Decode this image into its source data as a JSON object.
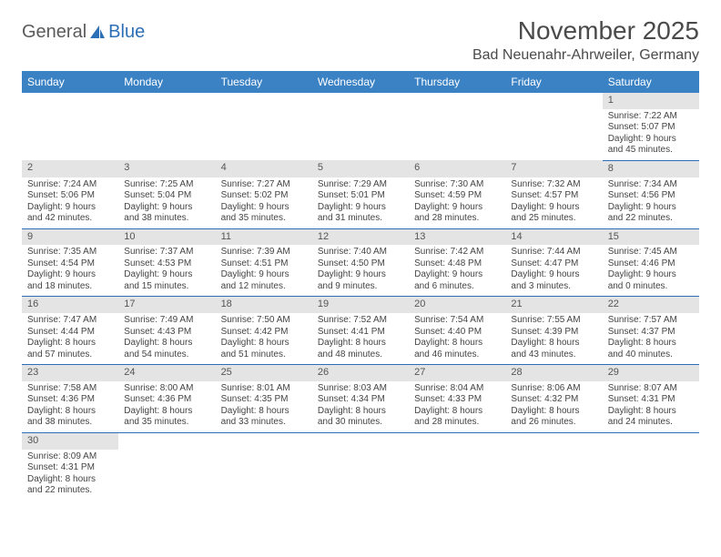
{
  "logo": {
    "general": "General",
    "blue": "Blue"
  },
  "title": "November 2025",
  "location": "Bad Neuenahr-Ahrweiler, Germany",
  "colors": {
    "header_bg": "#3b82c4",
    "header_text": "#ffffff",
    "daynum_bg": "#e4e4e4",
    "rule": "#2d6fb6",
    "logo_blue": "#2d6fb6",
    "logo_gray": "#5a5a5a"
  },
  "day_headers": [
    "Sunday",
    "Monday",
    "Tuesday",
    "Wednesday",
    "Thursday",
    "Friday",
    "Saturday"
  ],
  "weeks": [
    [
      null,
      null,
      null,
      null,
      null,
      null,
      {
        "n": "1",
        "l1": "Sunrise: 7:22 AM",
        "l2": "Sunset: 5:07 PM",
        "l3": "Daylight: 9 hours",
        "l4": "and 45 minutes."
      }
    ],
    [
      {
        "n": "2",
        "l1": "Sunrise: 7:24 AM",
        "l2": "Sunset: 5:06 PM",
        "l3": "Daylight: 9 hours",
        "l4": "and 42 minutes."
      },
      {
        "n": "3",
        "l1": "Sunrise: 7:25 AM",
        "l2": "Sunset: 5:04 PM",
        "l3": "Daylight: 9 hours",
        "l4": "and 38 minutes."
      },
      {
        "n": "4",
        "l1": "Sunrise: 7:27 AM",
        "l2": "Sunset: 5:02 PM",
        "l3": "Daylight: 9 hours",
        "l4": "and 35 minutes."
      },
      {
        "n": "5",
        "l1": "Sunrise: 7:29 AM",
        "l2": "Sunset: 5:01 PM",
        "l3": "Daylight: 9 hours",
        "l4": "and 31 minutes."
      },
      {
        "n": "6",
        "l1": "Sunrise: 7:30 AM",
        "l2": "Sunset: 4:59 PM",
        "l3": "Daylight: 9 hours",
        "l4": "and 28 minutes."
      },
      {
        "n": "7",
        "l1": "Sunrise: 7:32 AM",
        "l2": "Sunset: 4:57 PM",
        "l3": "Daylight: 9 hours",
        "l4": "and 25 minutes."
      },
      {
        "n": "8",
        "l1": "Sunrise: 7:34 AM",
        "l2": "Sunset: 4:56 PM",
        "l3": "Daylight: 9 hours",
        "l4": "and 22 minutes."
      }
    ],
    [
      {
        "n": "9",
        "l1": "Sunrise: 7:35 AM",
        "l2": "Sunset: 4:54 PM",
        "l3": "Daylight: 9 hours",
        "l4": "and 18 minutes."
      },
      {
        "n": "10",
        "l1": "Sunrise: 7:37 AM",
        "l2": "Sunset: 4:53 PM",
        "l3": "Daylight: 9 hours",
        "l4": "and 15 minutes."
      },
      {
        "n": "11",
        "l1": "Sunrise: 7:39 AM",
        "l2": "Sunset: 4:51 PM",
        "l3": "Daylight: 9 hours",
        "l4": "and 12 minutes."
      },
      {
        "n": "12",
        "l1": "Sunrise: 7:40 AM",
        "l2": "Sunset: 4:50 PM",
        "l3": "Daylight: 9 hours",
        "l4": "and 9 minutes."
      },
      {
        "n": "13",
        "l1": "Sunrise: 7:42 AM",
        "l2": "Sunset: 4:48 PM",
        "l3": "Daylight: 9 hours",
        "l4": "and 6 minutes."
      },
      {
        "n": "14",
        "l1": "Sunrise: 7:44 AM",
        "l2": "Sunset: 4:47 PM",
        "l3": "Daylight: 9 hours",
        "l4": "and 3 minutes."
      },
      {
        "n": "15",
        "l1": "Sunrise: 7:45 AM",
        "l2": "Sunset: 4:46 PM",
        "l3": "Daylight: 9 hours",
        "l4": "and 0 minutes."
      }
    ],
    [
      {
        "n": "16",
        "l1": "Sunrise: 7:47 AM",
        "l2": "Sunset: 4:44 PM",
        "l3": "Daylight: 8 hours",
        "l4": "and 57 minutes."
      },
      {
        "n": "17",
        "l1": "Sunrise: 7:49 AM",
        "l2": "Sunset: 4:43 PM",
        "l3": "Daylight: 8 hours",
        "l4": "and 54 minutes."
      },
      {
        "n": "18",
        "l1": "Sunrise: 7:50 AM",
        "l2": "Sunset: 4:42 PM",
        "l3": "Daylight: 8 hours",
        "l4": "and 51 minutes."
      },
      {
        "n": "19",
        "l1": "Sunrise: 7:52 AM",
        "l2": "Sunset: 4:41 PM",
        "l3": "Daylight: 8 hours",
        "l4": "and 48 minutes."
      },
      {
        "n": "20",
        "l1": "Sunrise: 7:54 AM",
        "l2": "Sunset: 4:40 PM",
        "l3": "Daylight: 8 hours",
        "l4": "and 46 minutes."
      },
      {
        "n": "21",
        "l1": "Sunrise: 7:55 AM",
        "l2": "Sunset: 4:39 PM",
        "l3": "Daylight: 8 hours",
        "l4": "and 43 minutes."
      },
      {
        "n": "22",
        "l1": "Sunrise: 7:57 AM",
        "l2": "Sunset: 4:37 PM",
        "l3": "Daylight: 8 hours",
        "l4": "and 40 minutes."
      }
    ],
    [
      {
        "n": "23",
        "l1": "Sunrise: 7:58 AM",
        "l2": "Sunset: 4:36 PM",
        "l3": "Daylight: 8 hours",
        "l4": "and 38 minutes."
      },
      {
        "n": "24",
        "l1": "Sunrise: 8:00 AM",
        "l2": "Sunset: 4:36 PM",
        "l3": "Daylight: 8 hours",
        "l4": "and 35 minutes."
      },
      {
        "n": "25",
        "l1": "Sunrise: 8:01 AM",
        "l2": "Sunset: 4:35 PM",
        "l3": "Daylight: 8 hours",
        "l4": "and 33 minutes."
      },
      {
        "n": "26",
        "l1": "Sunrise: 8:03 AM",
        "l2": "Sunset: 4:34 PM",
        "l3": "Daylight: 8 hours",
        "l4": "and 30 minutes."
      },
      {
        "n": "27",
        "l1": "Sunrise: 8:04 AM",
        "l2": "Sunset: 4:33 PM",
        "l3": "Daylight: 8 hours",
        "l4": "and 28 minutes."
      },
      {
        "n": "28",
        "l1": "Sunrise: 8:06 AM",
        "l2": "Sunset: 4:32 PM",
        "l3": "Daylight: 8 hours",
        "l4": "and 26 minutes."
      },
      {
        "n": "29",
        "l1": "Sunrise: 8:07 AM",
        "l2": "Sunset: 4:31 PM",
        "l3": "Daylight: 8 hours",
        "l4": "and 24 minutes."
      }
    ],
    [
      {
        "n": "30",
        "l1": "Sunrise: 8:09 AM",
        "l2": "Sunset: 4:31 PM",
        "l3": "Daylight: 8 hours",
        "l4": "and 22 minutes."
      },
      null,
      null,
      null,
      null,
      null,
      null
    ]
  ]
}
